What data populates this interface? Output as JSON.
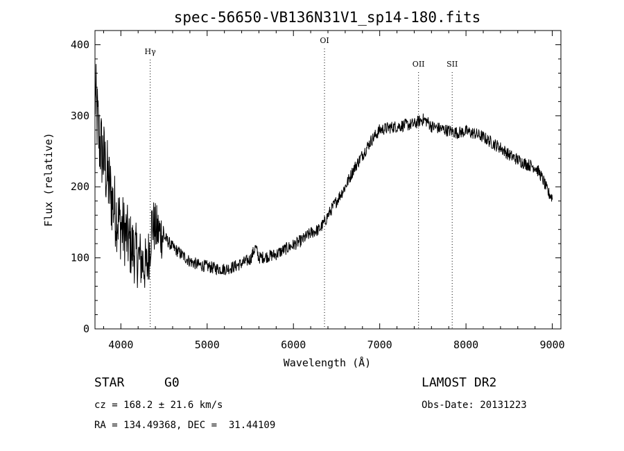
{
  "chart_data": {
    "type": "line",
    "title": "spec-56650-VB136N31V1_sp14-180.fits",
    "xlabel": "Wavelength (Å)",
    "ylabel": "Flux (relative)",
    "xlim": [
      3700,
      9100
    ],
    "ylim": [
      0,
      420
    ],
    "xticks": [
      4000,
      5000,
      6000,
      7000,
      8000,
      9000
    ],
    "yticks": [
      0,
      100,
      200,
      300,
      400
    ],
    "grid": false,
    "series": [
      {
        "x": [
          3700,
          3750,
          3800,
          3850,
          3900,
          3950,
          4000,
          4050,
          4100,
          4150,
          4200,
          4250,
          4300,
          4340,
          4360,
          4400,
          4450,
          4500,
          4600,
          4700,
          4800,
          4900,
          5000,
          5100,
          5200,
          5300,
          5400,
          5500,
          5560,
          5600,
          5700,
          5800,
          5900,
          6000,
          6100,
          6200,
          6300,
          6360,
          6400,
          6500,
          6600,
          6700,
          6800,
          6900,
          7000,
          7100,
          7200,
          7300,
          7400,
          7450,
          7500,
          7550,
          7600,
          7700,
          7800,
          7900,
          8000,
          8100,
          8200,
          8300,
          8400,
          8500,
          8600,
          8700,
          8800,
          8850,
          8900,
          8950,
          9000
        ],
        "y": [
          330,
          265,
          240,
          210,
          180,
          160,
          145,
          135,
          120,
          110,
          100,
          95,
          85,
          120,
          150,
          140,
          135,
          130,
          115,
          105,
          95,
          90,
          88,
          85,
          84,
          87,
          92,
          98,
          115,
          100,
          102,
          105,
          112,
          118,
          125,
          135,
          140,
          150,
          160,
          180,
          200,
          225,
          245,
          265,
          280,
          283,
          285,
          287,
          288,
          292,
          295,
          292,
          285,
          282,
          279,
          276,
          278,
          275,
          270,
          262,
          255,
          245,
          238,
          232,
          228,
          220,
          208,
          192,
          185
        ],
        "noise": 22
      }
    ],
    "annotations": [
      {
        "label": "Hγ",
        "x": 4340
      },
      {
        "label": "OI",
        "x": 6360
      },
      {
        "label": "OII",
        "x": 7450
      },
      {
        "label": "SII",
        "x": 7840
      }
    ]
  },
  "info": {
    "object_class": "STAR",
    "subclass": "G0",
    "redshift": "cz = 168.2 ± 21.6 km/s",
    "coords": "RA = 134.49368, DEC =  31.44109",
    "survey": "LAMOST DR2",
    "obs_date": "Obs-Date: 20131223"
  }
}
